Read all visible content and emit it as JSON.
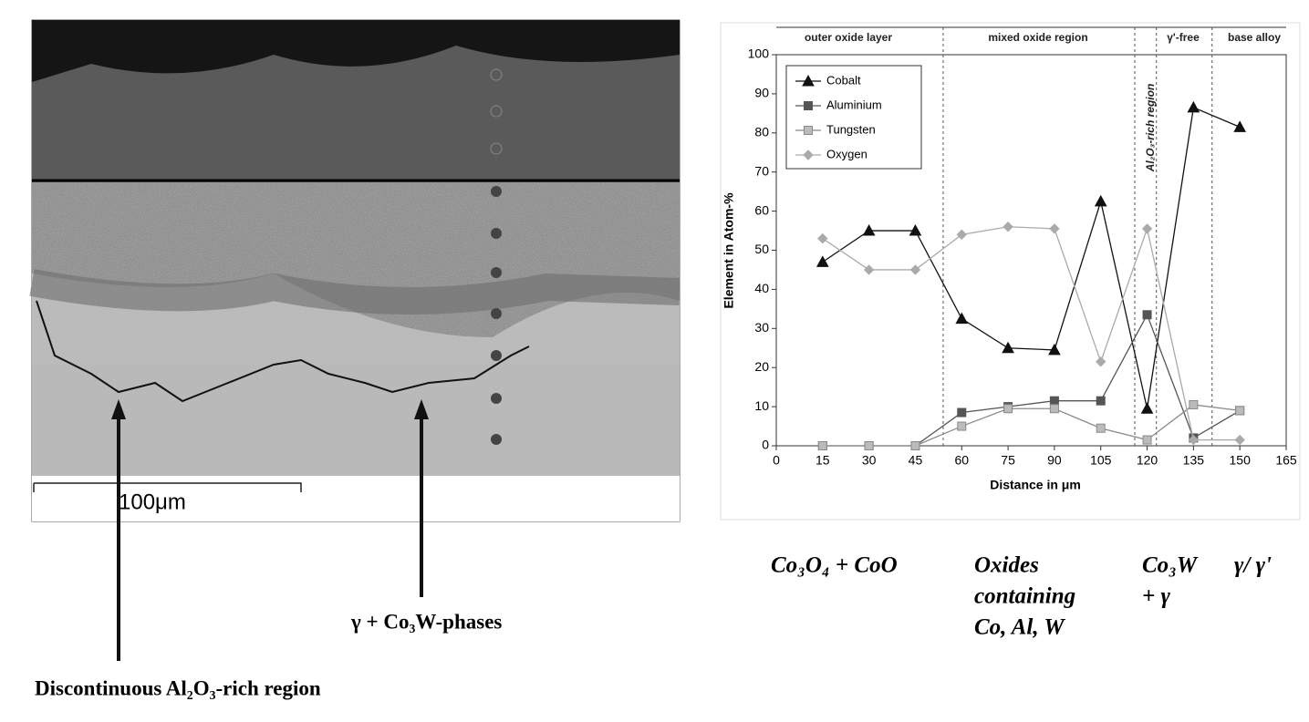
{
  "chart_data": {
    "type": "line",
    "y_label": "Element in Atom-%",
    "x_label": "Distance in μm",
    "x": [
      15,
      30,
      45,
      60,
      75,
      90,
      105,
      120,
      135,
      150
    ],
    "series": [
      {
        "name": "Cobalt",
        "color": "#111111",
        "marker": "triangle",
        "values": [
          47,
          55,
          55,
          32.5,
          25,
          24.5,
          62.5,
          9.5,
          86.5,
          81.5
        ]
      },
      {
        "name": "Aluminium",
        "color": "#555555",
        "marker": "square",
        "values": [
          0,
          0,
          0,
          8.5,
          10,
          11.5,
          11.5,
          33.5,
          2,
          9
        ]
      },
      {
        "name": "Tungsten",
        "color": "#8a8a8a",
        "marker": "square-light",
        "values": [
          0,
          0,
          0,
          5,
          9.5,
          9.5,
          4.5,
          1.5,
          10.5,
          9
        ]
      },
      {
        "name": "Oxygen",
        "color": "#aaaaaa",
        "marker": "diamond",
        "values": [
          53,
          45,
          45,
          54,
          56,
          55.5,
          21.5,
          55.5,
          1.5,
          1.5
        ]
      }
    ],
    "xlim": [
      0,
      165
    ],
    "xticks": [
      0,
      15,
      30,
      45,
      60,
      75,
      90,
      105,
      120,
      135,
      150,
      165
    ],
    "ylim": [
      0,
      100
    ],
    "yticks": [
      0,
      10,
      20,
      30,
      40,
      50,
      60,
      70,
      80,
      90,
      100
    ],
    "dividers": [
      54,
      116,
      123,
      141
    ],
    "regions": [
      "outer oxide layer",
      "mixed oxide region",
      "Al₂O₃-rich region",
      "γ'-free",
      "base alloy"
    ],
    "legend": "upper left"
  },
  "micrograph": {
    "scale_bar": "100μm",
    "arrow_labels": [
      "γ + Co₃W-phases",
      "Discontinuous Al₂O₃-rich region"
    ]
  },
  "phases": [
    [
      "Co₃O₄ + CoO"
    ],
    [
      "Oxides",
      "containing",
      "Co, Al, W"
    ],
    [
      "Co₃W",
      "+ γ"
    ],
    [
      "γ/ γ'"
    ]
  ]
}
